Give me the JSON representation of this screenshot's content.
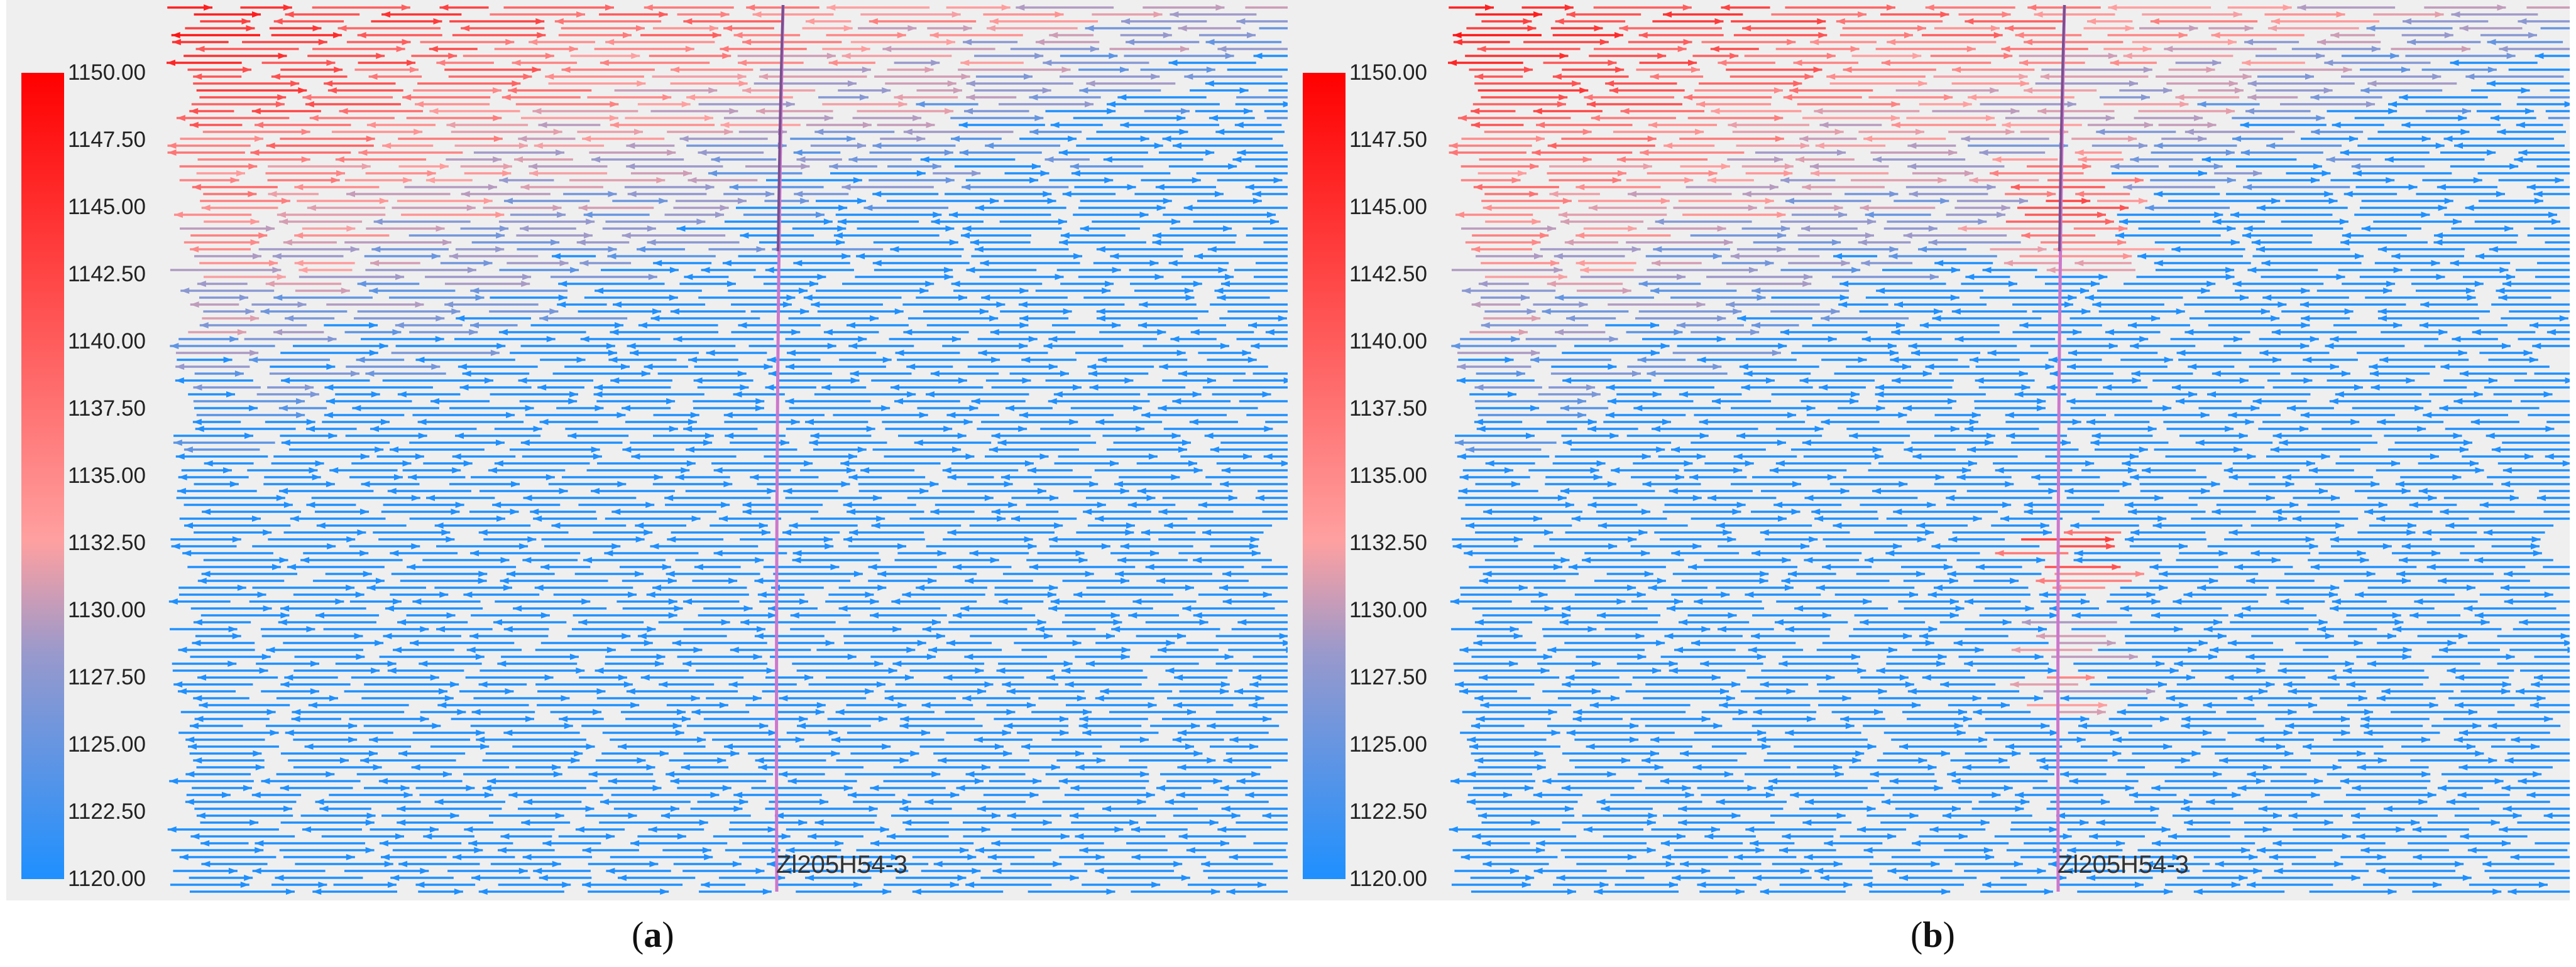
{
  "colors": {
    "low": "#1e90ff",
    "mid": "#9999cc",
    "pink": "#ffa0a0",
    "high": "#ff0000",
    "well": "#cc77cc",
    "background": "#efefef"
  },
  "colorbar": {
    "ticks": [
      "1150.00",
      "1147.50",
      "1145.00",
      "1142.50",
      "1140.00",
      "1137.50",
      "1135.00",
      "1132.50",
      "1130.00",
      "1127.50",
      "1125.00",
      "1122.50",
      "1120.00"
    ],
    "min": 1120,
    "max": 1150
  },
  "panels": [
    {
      "id": "a",
      "well_label": "Zl205H54-3",
      "caption_letter": "a",
      "caption_open": "(",
      "caption_close": ")"
    },
    {
      "id": "b",
      "well_label": "Zl205H54-3",
      "caption_letter": "b",
      "caption_open": "(",
      "caption_close": ")"
    }
  ],
  "icons": [
    "flow-arrow-icon"
  ]
}
